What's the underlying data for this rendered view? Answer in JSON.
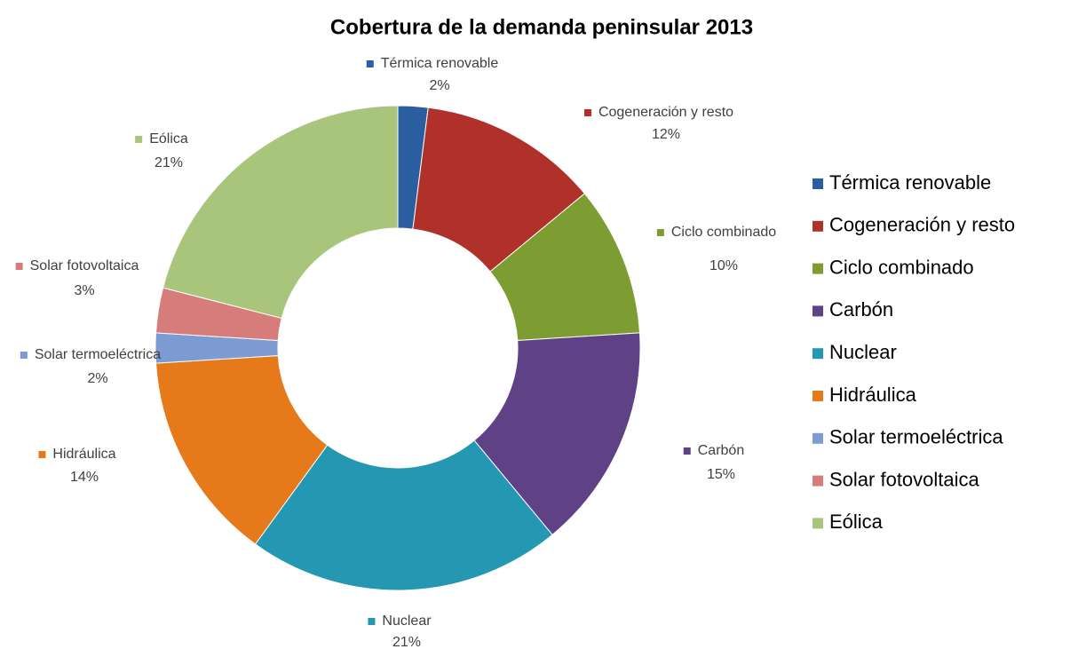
{
  "chart_data": {
    "type": "donut",
    "title": "Cobertura de la demanda peninsular 2013",
    "categories": [
      "Térmica renovable",
      "Cogeneración y resto",
      "Ciclo combinado",
      "Carbón",
      "Nuclear",
      "Hidráulica",
      "Solar termoeléctrica",
      "Solar fotovoltaica",
      "Eólica"
    ],
    "values": [
      2,
      12,
      10,
      15,
      21,
      14,
      2,
      3,
      21
    ],
    "value_labels": [
      "2%",
      "12%",
      "10%",
      "15%",
      "21%",
      "14%",
      "2%",
      "3%",
      "21%"
    ],
    "colors": [
      "#2a5ea0",
      "#b0302a",
      "#7d9c32",
      "#5f4186",
      "#2497b2",
      "#e6791a",
      "#7b9bd2",
      "#d67c7a",
      "#a9c57c"
    ],
    "legend": "right"
  }
}
